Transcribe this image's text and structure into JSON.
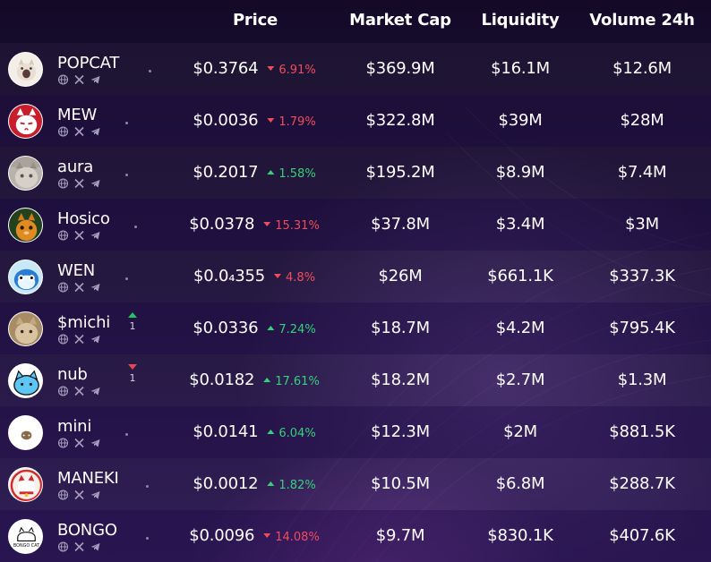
{
  "columns": {
    "price": "Price",
    "market_cap": "Market Cap",
    "liquidity": "Liquidity",
    "volume": "Volume 24h"
  },
  "colors": {
    "positive": "#34d27a",
    "negative": "#ef4d5c",
    "rank_up": "#22c55e",
    "rank_down": "#e5484d"
  },
  "social_icons": [
    "globe-icon",
    "x-icon",
    "telegram-icon"
  ],
  "tokens": [
    {
      "name": "POPCAT",
      "price": "$0.3764",
      "change": "6.91%",
      "direction": "down",
      "market_cap": "$369.9M",
      "liquidity": "$16.1M",
      "volume": "$12.6M",
      "rank_change": null,
      "avatar": "popcat-avatar"
    },
    {
      "name": "MEW",
      "price": "$0.0036",
      "change": "1.79%",
      "direction": "down",
      "market_cap": "$322.8M",
      "liquidity": "$39M",
      "volume": "$28M",
      "rank_change": null,
      "avatar": "mew-avatar"
    },
    {
      "name": "aura",
      "price": "$0.2017",
      "change": "1.58%",
      "direction": "up",
      "market_cap": "$195.2M",
      "liquidity": "$8.9M",
      "volume": "$7.4M",
      "rank_change": null,
      "avatar": "aura-avatar"
    },
    {
      "name": "Hosico",
      "price": "$0.0378",
      "change": "15.31%",
      "direction": "down",
      "market_cap": "$37.8M",
      "liquidity": "$3.4M",
      "volume": "$3M",
      "rank_change": null,
      "avatar": "hosico-avatar"
    },
    {
      "name": "WEN",
      "price": "$0.0₄355",
      "change": "4.8%",
      "direction": "down",
      "market_cap": "$26M",
      "liquidity": "$661.1K",
      "volume": "$337.3K",
      "rank_change": null,
      "avatar": "wen-avatar"
    },
    {
      "name": "$michi",
      "price": "$0.0336",
      "change": "7.24%",
      "direction": "up",
      "market_cap": "$18.7M",
      "liquidity": "$4.2M",
      "volume": "$795.4K",
      "rank_change": {
        "direction": "up",
        "value": "1"
      },
      "avatar": "michi-avatar"
    },
    {
      "name": "nub",
      "price": "$0.0182",
      "change": "17.61%",
      "direction": "up",
      "market_cap": "$18.2M",
      "liquidity": "$2.7M",
      "volume": "$1.3M",
      "rank_change": {
        "direction": "down",
        "value": "1"
      },
      "avatar": "nub-avatar"
    },
    {
      "name": "mini",
      "price": "$0.0141",
      "change": "6.04%",
      "direction": "up",
      "market_cap": "$12.3M",
      "liquidity": "$2M",
      "volume": "$881.5K",
      "rank_change": null,
      "avatar": "mini-avatar"
    },
    {
      "name": "MANEKI",
      "price": "$0.0012",
      "change": "1.82%",
      "direction": "up",
      "market_cap": "$10.5M",
      "liquidity": "$6.8M",
      "volume": "$288.7K",
      "rank_change": null,
      "avatar": "maneki-avatar"
    },
    {
      "name": "BONGO",
      "price": "$0.0096",
      "change": "14.08%",
      "direction": "down",
      "market_cap": "$9.7M",
      "liquidity": "$830.1K",
      "volume": "$407.6K",
      "rank_change": null,
      "avatar": "bongo-avatar"
    }
  ]
}
